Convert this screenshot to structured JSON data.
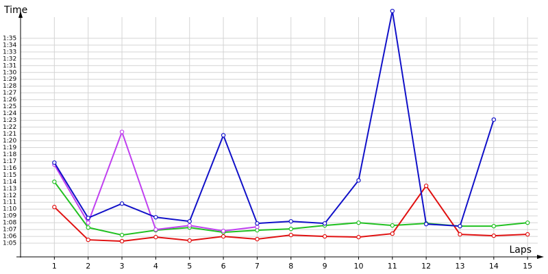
{
  "chart_data": {
    "type": "line",
    "y_label": "Time",
    "x_label": "Laps",
    "x": [
      1,
      2,
      3,
      4,
      5,
      6,
      7,
      8,
      9,
      10,
      11,
      12,
      13,
      14,
      15
    ],
    "xlim": [
      0,
      15.3
    ],
    "xticks": [
      1,
      2,
      3,
      4,
      5,
      6,
      7,
      8,
      9,
      10,
      11,
      12,
      13,
      14,
      15
    ],
    "ylim": [
      63,
      98.1
    ],
    "yticks": [
      {
        "value": 65,
        "label": "1:05"
      },
      {
        "value": 66,
        "label": "1:06"
      },
      {
        "value": 67,
        "label": "1:07"
      },
      {
        "value": 68,
        "label": "1:08"
      },
      {
        "value": 69,
        "label": "1:09"
      },
      {
        "value": 70,
        "label": "1:10"
      },
      {
        "value": 71,
        "label": "1:11"
      },
      {
        "value": 72,
        "label": "1:12"
      },
      {
        "value": 73,
        "label": "1:13"
      },
      {
        "value": 74,
        "label": "1:14"
      },
      {
        "value": 75,
        "label": "1:15"
      },
      {
        "value": 76,
        "label": "1:16"
      },
      {
        "value": 77,
        "label": "1:17"
      },
      {
        "value": 78,
        "label": "1:18"
      },
      {
        "value": 79,
        "label": "1:19"
      },
      {
        "value": 80,
        "label": "1:20"
      },
      {
        "value": 81,
        "label": "1:21"
      },
      {
        "value": 82,
        "label": "1:22"
      },
      {
        "value": 83,
        "label": "1:23"
      },
      {
        "value": 84,
        "label": "1:24"
      },
      {
        "value": 85,
        "label": "1:25"
      },
      {
        "value": 86,
        "label": "1:26"
      },
      {
        "value": 87,
        "label": "1:27"
      },
      {
        "value": 88,
        "label": "1:28"
      },
      {
        "value": 89,
        "label": "1:29"
      },
      {
        "value": 90,
        "label": "1:30"
      },
      {
        "value": 91,
        "label": "1:31"
      },
      {
        "value": 92,
        "label": "1:32"
      },
      {
        "value": 93,
        "label": "1:33"
      },
      {
        "value": 94,
        "label": "1:34"
      },
      {
        "value": 95,
        "label": "1:35"
      }
    ],
    "grid": true,
    "series": [
      {
        "color": "#20c020",
        "values": [
          74.0,
          67.3,
          66.2,
          66.9,
          67.3,
          66.6,
          66.9,
          67.1,
          67.6,
          68.0,
          67.6,
          67.9,
          67.5,
          67.5,
          68.0
        ]
      },
      {
        "color": "#e01010",
        "values": [
          70.3,
          65.5,
          65.3,
          65.9,
          65.4,
          66.0,
          65.6,
          66.2,
          66.0,
          65.9,
          66.4,
          73.4,
          66.3,
          66.1,
          66.3
        ]
      },
      {
        "color": "#c040f0",
        "values": [
          76.5,
          68.0,
          81.3,
          67.0,
          67.6,
          66.8,
          67.4,
          null,
          null,
          null,
          null,
          null,
          null,
          null,
          null
        ]
      },
      {
        "color": "#1010c8",
        "values": [
          76.8,
          68.7,
          70.8,
          68.8,
          68.2,
          80.8,
          67.9,
          68.2,
          67.9,
          74.2,
          99.0,
          67.8,
          67.5,
          83.1,
          null
        ]
      }
    ]
  }
}
